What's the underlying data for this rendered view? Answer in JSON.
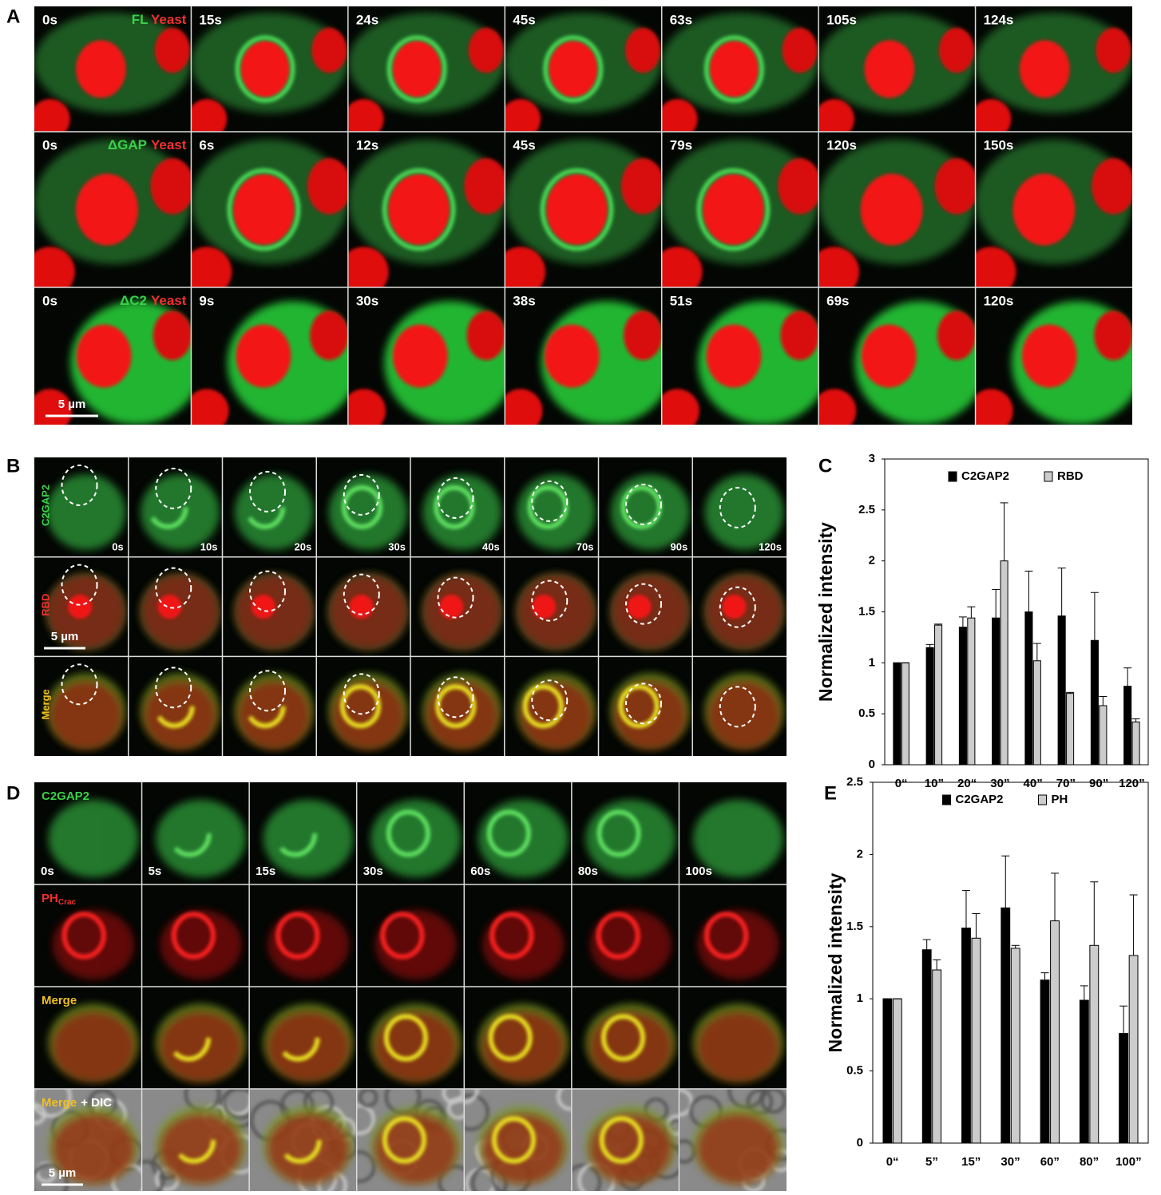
{
  "panel_a": {
    "letter": "A",
    "scale_bar": "5 µm",
    "rows": [
      {
        "label": [
          "FL",
          "Yeast"
        ],
        "times": [
          "0s",
          "15s",
          "24s",
          "45s",
          "63s",
          "105s",
          "124s"
        ]
      },
      {
        "label": [
          "ΔGAP",
          "Yeast"
        ],
        "times": [
          "0s",
          "6s",
          "12s",
          "45s",
          "79s",
          "120s",
          "150s"
        ]
      },
      {
        "label": [
          "ΔC2",
          "Yeast"
        ],
        "times": [
          "0s",
          "9s",
          "30s",
          "38s",
          "51s",
          "69s",
          "120s"
        ]
      }
    ]
  },
  "panel_b": {
    "letter": "B",
    "scale_bar": "5 µm",
    "row_labels": [
      "C2GAP2",
      "RBD",
      "Merge"
    ],
    "times": [
      "0s",
      "10s",
      "20s",
      "30s",
      "40s",
      "70s",
      "90s",
      "120s"
    ]
  },
  "panel_d": {
    "letter": "D",
    "scale_bar": "5 µm",
    "row_labels": [
      [
        "C2GAP2"
      ],
      [
        "PH",
        "Crac"
      ],
      [
        "Merge"
      ],
      [
        "Merge",
        "+ DIC"
      ]
    ],
    "times": [
      "0s",
      "5s",
      "15s",
      "30s",
      "60s",
      "80s",
      "100s"
    ]
  },
  "chart_data": [
    {
      "type": "bar",
      "panel_label": "C",
      "y_label": "Normalized intensity",
      "categories": [
        "0“",
        "10”",
        "20“",
        "30”",
        "40”",
        "70”",
        "90”",
        "120”"
      ],
      "series": [
        {
          "name": "C2GAP2",
          "color": "#000000",
          "values": [
            1.0,
            1.15,
            1.35,
            1.44,
            1.5,
            1.46,
            1.22,
            0.77
          ],
          "errors": [
            0.0,
            0.03,
            0.1,
            0.28,
            0.4,
            0.47,
            0.47,
            0.18
          ]
        },
        {
          "name": "RBD",
          "color": "#cccccc",
          "values": [
            1.0,
            1.37,
            1.44,
            2.0,
            1.02,
            0.7,
            0.58,
            0.42
          ],
          "errors": [
            0.0,
            0.01,
            0.11,
            0.57,
            0.17,
            0.01,
            0.09,
            0.03
          ]
        }
      ],
      "ylim": [
        0,
        3
      ],
      "yticks": [
        0,
        0.5,
        1,
        1.5,
        2,
        2.5,
        3
      ],
      "legend": "top"
    },
    {
      "type": "bar",
      "panel_label": "E",
      "y_label": "Normalized intensity",
      "categories": [
        "0“",
        "5”",
        "15”",
        "30”",
        "60”",
        "80”",
        "100”"
      ],
      "series": [
        {
          "name": "C2GAP2",
          "color": "#000000",
          "values": [
            1.0,
            1.34,
            1.49,
            1.63,
            1.13,
            0.99,
            0.76
          ],
          "errors": [
            0.0,
            0.07,
            0.26,
            0.36,
            0.05,
            0.1,
            0.19
          ]
        },
        {
          "name": "PH",
          "color": "#cccccc",
          "values": [
            1.0,
            1.2,
            1.42,
            1.35,
            1.54,
            1.37,
            1.3
          ],
          "errors": [
            0.0,
            0.07,
            0.17,
            0.02,
            0.33,
            0.44,
            0.42
          ]
        }
      ],
      "ylim": [
        0,
        2.5
      ],
      "yticks": [
        0,
        0.5,
        1,
        1.5,
        2,
        2.5
      ],
      "legend": "top"
    }
  ]
}
